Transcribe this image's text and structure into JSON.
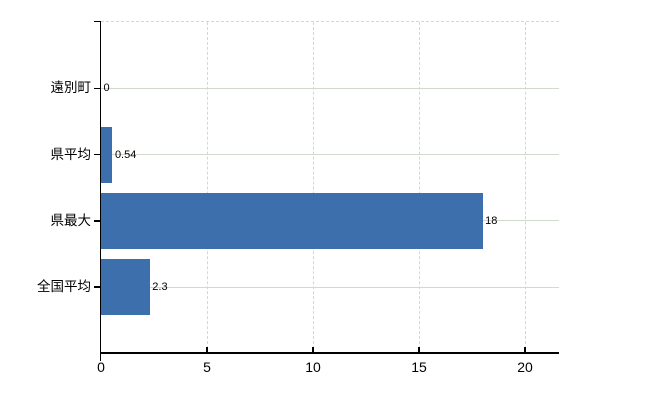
{
  "chart_data": {
    "type": "bar",
    "orientation": "horizontal",
    "title": "",
    "categories": [
      "遠別町",
      "県平均",
      "県最大",
      "全国平均"
    ],
    "values": [
      0,
      0.54,
      18,
      2.3
    ],
    "value_labels": [
      "0",
      "0.54",
      "18",
      "2.3"
    ],
    "x_ticks": [
      0,
      5,
      10,
      15,
      20
    ],
    "x_tick_labels": [
      "0",
      "5",
      "10",
      "15",
      "20"
    ],
    "xlim": [
      0,
      21.6
    ],
    "ylabel": "",
    "xlabel": "",
    "grid": true,
    "legend": false,
    "colors": {
      "bar": "#3e6fad",
      "h_gridline": "#d2d9cf",
      "v_gridline": "#dad5d5",
      "axis": "#000000",
      "text": "#000000",
      "background": "#ffffff"
    }
  }
}
